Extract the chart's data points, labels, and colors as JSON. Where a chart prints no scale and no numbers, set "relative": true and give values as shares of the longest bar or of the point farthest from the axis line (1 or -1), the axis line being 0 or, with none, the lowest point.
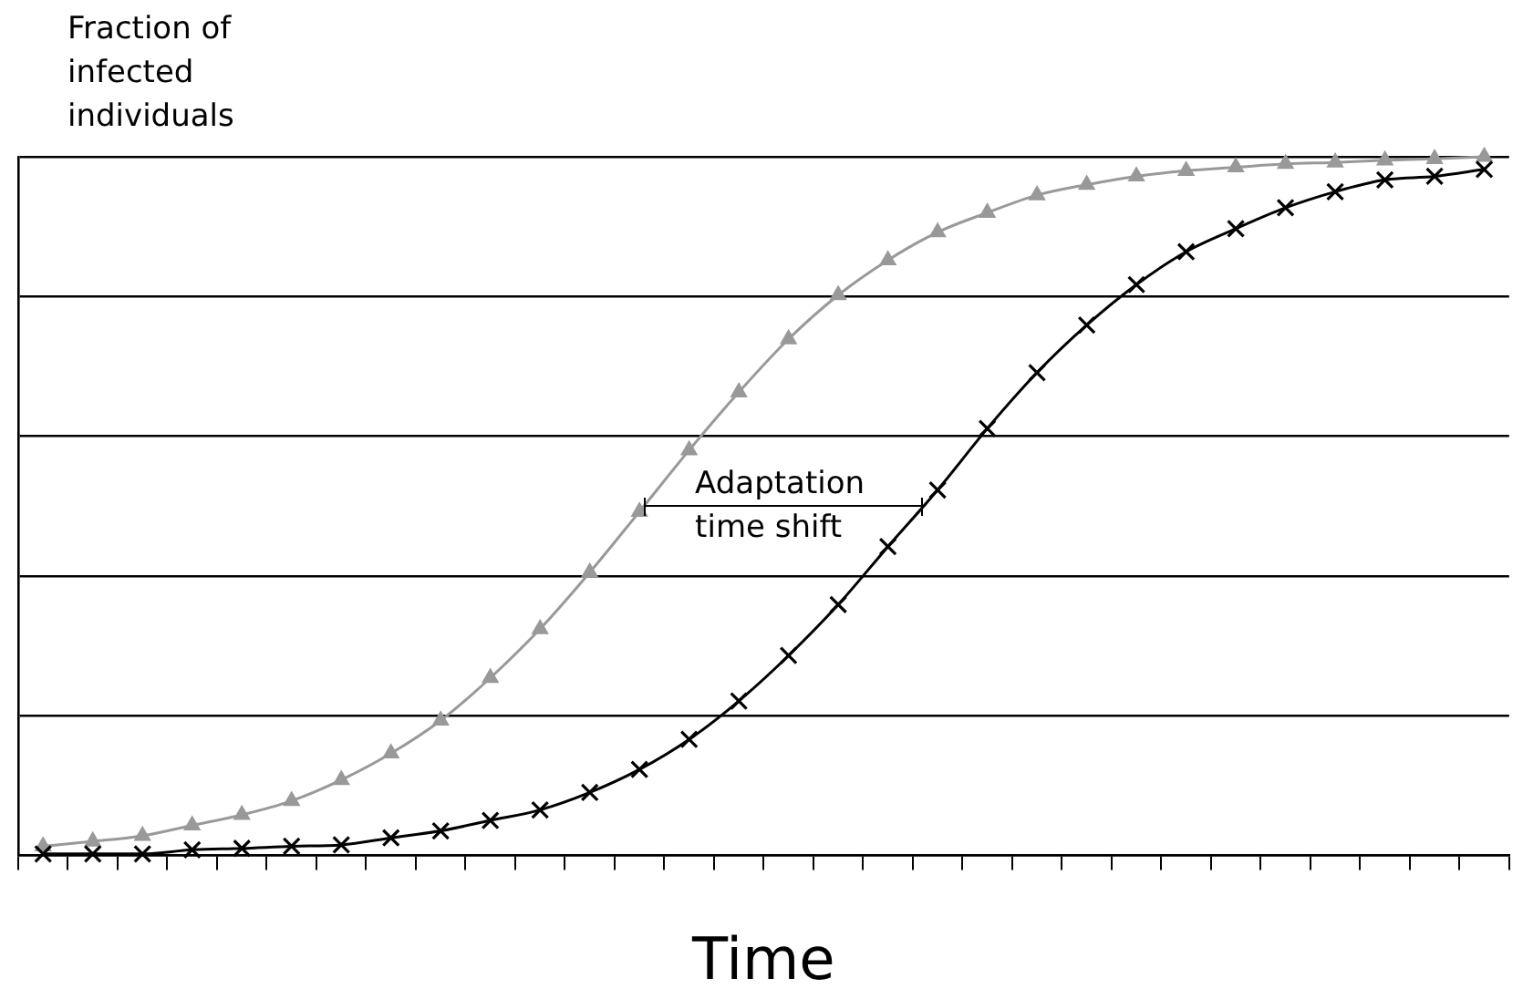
{
  "chart_data": {
    "type": "line",
    "relative": true,
    "xlabel": "Time",
    "ylabel": "Fraction of infected individuals",
    "grid": "y",
    "legend": false,
    "line_style": "solid",
    "categories": [
      null,
      null,
      null,
      null,
      null,
      null,
      null,
      null,
      null,
      null,
      null,
      null,
      null,
      null,
      null,
      null,
      null,
      null,
      null,
      null,
      null,
      null,
      null,
      null,
      null,
      null,
      null,
      null,
      null,
      null
    ],
    "annotations": [
      "Adaptation time shift"
    ],
    "series": [
      {
        "color": "#999999",
        "marker": "triangle",
        "values": [
          0.013,
          0.02,
          0.028,
          0.043,
          0.058,
          0.078,
          0.108,
          0.146,
          0.193,
          0.254,
          0.324,
          0.405,
          0.492,
          0.58,
          0.663,
          0.739,
          0.802,
          0.852,
          0.892,
          0.92,
          0.945,
          0.96,
          0.972,
          0.98,
          0.985,
          0.99,
          0.992,
          0.995,
          0.997,
          1
        ]
      },
      {
        "color": "#000000",
        "marker": "cross",
        "values": [
          0.002,
          0.002,
          0.002,
          0.008,
          0.01,
          0.013,
          0.015,
          0.025,
          0.035,
          0.05,
          0.065,
          0.09,
          0.123,
          0.166,
          0.221,
          0.286,
          0.359,
          0.442,
          0.523,
          0.611,
          0.691,
          0.759,
          0.817,
          0.864,
          0.897,
          0.927,
          0.95,
          0.967,
          0.972,
          0.982
        ]
      }
    ]
  }
}
